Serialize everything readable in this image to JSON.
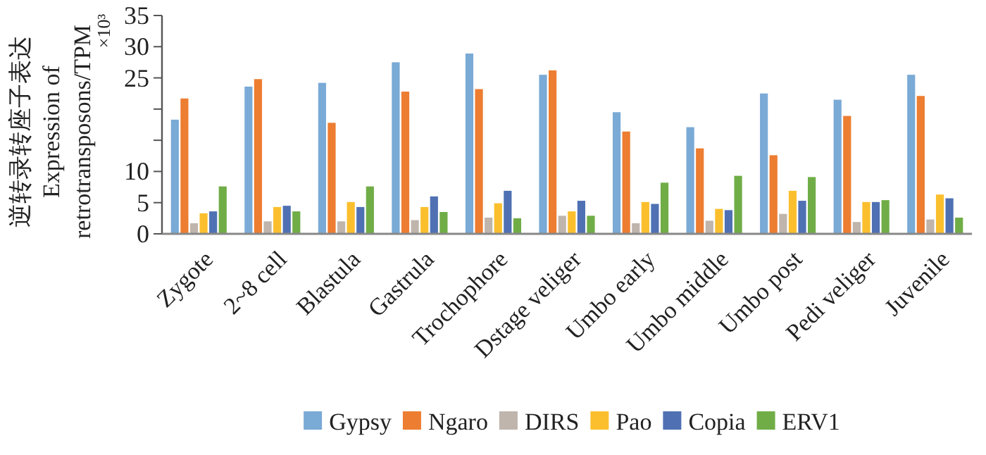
{
  "chart_data": {
    "type": "bar",
    "ylabel": "逆转录转座子表达\nExpression of\nretrotransposons/TPM",
    "annotations": [
      "×10³"
    ],
    "categories": [
      "Zygote",
      "2~8 cell",
      "Blastula",
      "Gastrula",
      "Trochophore",
      "Dstage veliger",
      "Umbo early",
      "Umbo middle",
      "Umbo post",
      "Pedi veliger",
      "Juvenile"
    ],
    "series": [
      {
        "name": "Gypsy",
        "color": "#7aaad6",
        "values": [
          18.3,
          23.6,
          24.2,
          27.5,
          28.9,
          25.5,
          19.5,
          17.1,
          22.5,
          21.5,
          25.5
        ]
      },
      {
        "name": "Ngaro",
        "color": "#ed7d31",
        "values": [
          21.7,
          24.8,
          17.8,
          22.8,
          23.2,
          26.2,
          16.4,
          13.7,
          12.6,
          18.9,
          22.1
        ]
      },
      {
        "name": "DIRS",
        "color": "#bfb5ad",
        "values": [
          1.7,
          2.0,
          2.0,
          2.2,
          2.6,
          2.9,
          1.7,
          2.1,
          3.2,
          1.9,
          2.3
        ]
      },
      {
        "name": "Pao",
        "color": "#fbbf2e",
        "values": [
          3.3,
          4.3,
          5.1,
          4.3,
          4.9,
          3.6,
          5.1,
          4.0,
          6.9,
          5.1,
          6.3
        ]
      },
      {
        "name": "Copia",
        "color": "#4f71b3",
        "values": [
          3.6,
          4.5,
          4.3,
          6.0,
          6.9,
          5.3,
          4.8,
          3.8,
          5.3,
          5.1,
          5.7
        ]
      },
      {
        "name": "ERV1",
        "color": "#70ad47",
        "values": [
          7.6,
          3.6,
          7.6,
          3.5,
          2.5,
          2.9,
          8.2,
          9.3,
          9.1,
          5.4,
          2.6
        ]
      }
    ],
    "ylim": [
      0,
      35
    ],
    "yticks": [
      0,
      5,
      10,
      {
        "value": 15,
        "label": null
      },
      {
        "value": 20,
        "label": null
      },
      25,
      30,
      35
    ],
    "grid": false,
    "legend": "bottom"
  }
}
